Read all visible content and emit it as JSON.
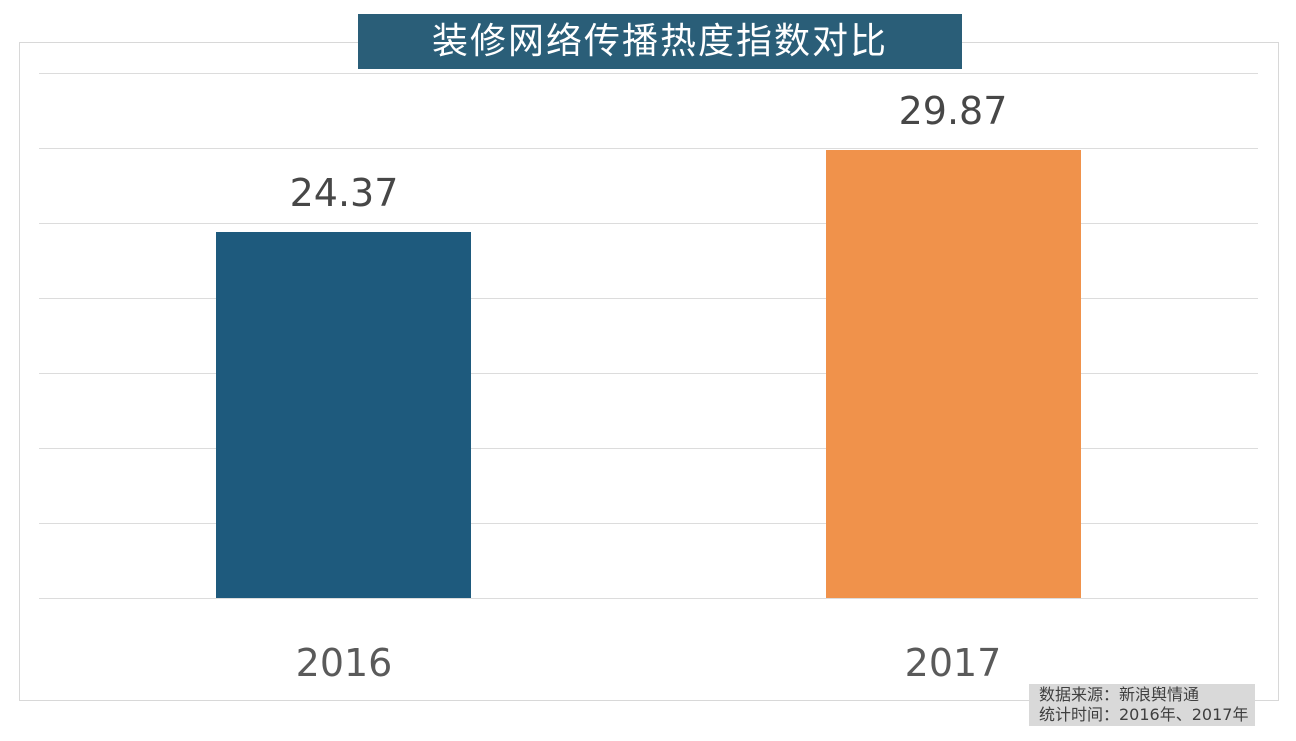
{
  "page": {
    "background": "#ffffff",
    "frame_border_color": "#d8d8d8",
    "gridline_color": "#dcdcdc"
  },
  "title": {
    "text": "装修网络传播热度指数对比",
    "bg_color": "#2a5e78",
    "text_color": "#ffffff"
  },
  "chart_data": {
    "type": "bar",
    "title": "装修网络传播热度指数对比",
    "categories": [
      "2016",
      "2017"
    ],
    "values": [
      24.37,
      29.87
    ],
    "value_labels": [
      "24.37",
      "29.87"
    ],
    "bar_colors": [
      "#1e5a7d",
      "#f0924b"
    ],
    "xlabel": "",
    "ylabel": "",
    "ylim": [
      0,
      35
    ],
    "gridline_step": 5,
    "grid": "horizontal-only",
    "y_tick_labels_visible": false,
    "legend": "none",
    "value_label_color": "#474747",
    "category_label_color": "#5a5a5a"
  },
  "source_note": {
    "line1": "数据来源：新浪舆情通",
    "line2": "统计时间：2016年、2017年",
    "bg_color": "#d9d9d9",
    "text_color": "#3f3f3f"
  }
}
